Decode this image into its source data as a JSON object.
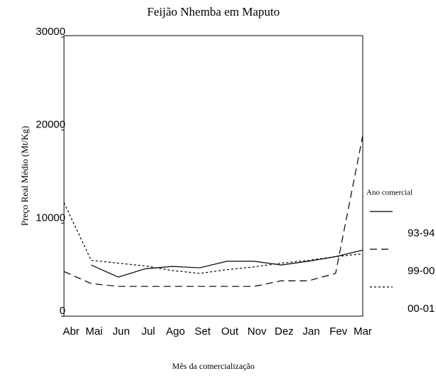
{
  "chart_data": {
    "type": "line",
    "title": "Feijão Nhemba em Maputo",
    "x_label": "Mês da comercialização",
    "y_label": "Preço Real Médio (Mt/Kg)",
    "legend_title": "Ano comercial",
    "categories": [
      "Abr",
      "Mai",
      "Jun",
      "Jul",
      "Ago",
      "Set",
      "Out",
      "Nov",
      "Dez",
      "Jan",
      "Fev",
      "Mar"
    ],
    "series": [
      {
        "name": "93-94",
        "color": "#000000",
        "dash": "solid",
        "values": [
          null,
          5500,
          4200,
          5100,
          5350,
          5200,
          5900,
          5900,
          5500,
          5900,
          6400,
          7100
        ]
      },
      {
        "name": "99-00",
        "color": "#000000",
        "dash": "dashed",
        "values": [
          4800,
          3500,
          3200,
          3200,
          3200,
          3200,
          3200,
          3200,
          3800,
          3800,
          4600,
          19400
        ]
      },
      {
        "name": "00-01",
        "color": "#000000",
        "dash": "dotted",
        "values": [
          12200,
          6000,
          5700,
          5400,
          4900,
          4600,
          5000,
          5300,
          5700,
          6000,
          6400,
          6700
        ]
      }
    ],
    "ylim": [
      0,
      30000
    ],
    "yticks": [
      0,
      10000,
      20000,
      30000
    ],
    "grid": false,
    "legend": "right"
  }
}
